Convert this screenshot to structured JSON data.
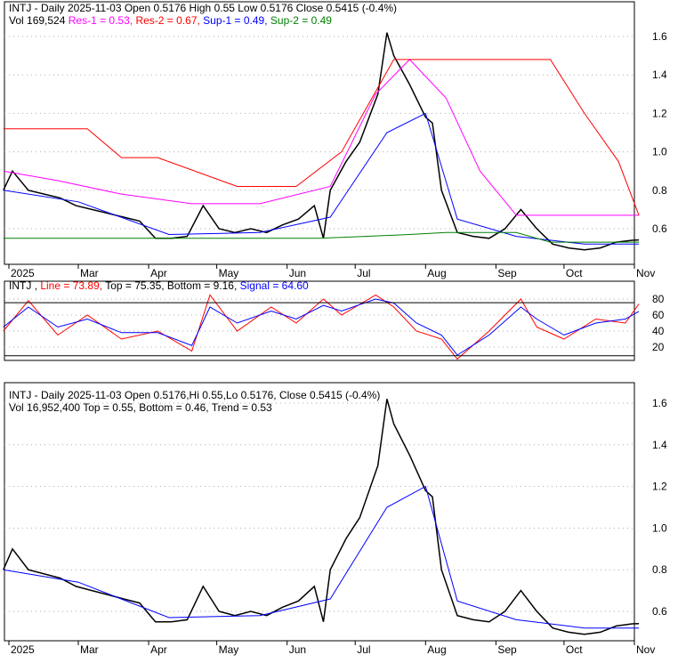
{
  "chart_data": [
    {
      "type": "line",
      "panel": "price-support-resistance",
      "header": {
        "line1": "INTJ - Daily 2025-11-03 Open 0.5176  High 0.55  Low 0.5176  Close 0.5415 (-0.4%)",
        "vol": "Vol 169,524",
        "res1": "Res-1 = 0.53",
        "res2": "Res-2 = 0.67",
        "sup1": "Sup-1 = 0.49",
        "sup2": "Sup-2 = 0.49"
      },
      "yticks": [
        "0.6",
        "0.8",
        "1.0",
        "1.2",
        "1.4",
        "1.6"
      ],
      "ylim": [
        0.5,
        1.7
      ],
      "xticks": [
        "2025",
        "Mar",
        "Apr",
        "May",
        "Jun",
        "Jul",
        "Aug",
        "Sep",
        "Oct",
        "Nov"
      ],
      "series": [
        {
          "key": "close",
          "color": "#000000",
          "x": [
            "2025-01-27",
            "2025-01-31",
            "2025-02-07",
            "2025-02-14",
            "2025-02-21",
            "2025-02-28",
            "2025-03-07",
            "2025-03-14",
            "2025-03-21",
            "2025-03-28",
            "2025-04-04",
            "2025-04-11",
            "2025-04-18",
            "2025-04-25",
            "2025-05-02",
            "2025-05-09",
            "2025-05-16",
            "2025-05-23",
            "2025-05-30",
            "2025-06-06",
            "2025-06-13",
            "2025-06-17",
            "2025-06-20",
            "2025-06-27",
            "2025-07-03",
            "2025-07-11",
            "2025-07-15",
            "2025-07-18",
            "2025-07-25",
            "2025-08-01",
            "2025-08-04",
            "2025-08-08",
            "2025-08-15",
            "2025-08-22",
            "2025-08-29",
            "2025-09-05",
            "2025-09-12",
            "2025-09-19",
            "2025-09-26",
            "2025-10-03",
            "2025-10-10",
            "2025-10-17",
            "2025-10-24",
            "2025-10-31",
            "2025-11-03"
          ],
          "y": [
            0.8,
            0.9,
            0.8,
            0.78,
            0.76,
            0.72,
            0.7,
            0.68,
            0.66,
            0.64,
            0.55,
            0.55,
            0.56,
            0.72,
            0.6,
            0.58,
            0.6,
            0.58,
            0.62,
            0.65,
            0.72,
            0.55,
            0.8,
            0.95,
            1.05,
            1.3,
            1.62,
            1.5,
            1.35,
            1.18,
            1.15,
            0.8,
            0.58,
            0.56,
            0.55,
            0.6,
            0.7,
            0.6,
            0.52,
            0.5,
            0.49,
            0.5,
            0.53,
            0.54,
            0.5415
          ]
        },
        {
          "key": "res-magenta",
          "color": "#ff00ff",
          "x": [
            "2025-01-27",
            "2025-02-20",
            "2025-03-20",
            "2025-04-20",
            "2025-05-20",
            "2025-06-20",
            "2025-07-10",
            "2025-07-25",
            "2025-08-10",
            "2025-08-25",
            "2025-09-10",
            "2025-10-15",
            "2025-11-03"
          ],
          "y": [
            0.9,
            0.85,
            0.78,
            0.73,
            0.73,
            0.82,
            1.3,
            1.48,
            1.28,
            0.9,
            0.67,
            0.67,
            0.67
          ]
        },
        {
          "key": "res-red",
          "color": "#ff0000",
          "x": [
            "2025-01-27",
            "2025-03-05",
            "2025-03-20",
            "2025-04-05",
            "2025-05-10",
            "2025-06-05",
            "2025-06-25",
            "2025-07-18",
            "2025-09-25",
            "2025-10-10",
            "2025-10-25",
            "2025-11-03"
          ],
          "y": [
            1.12,
            1.12,
            0.97,
            0.97,
            0.82,
            0.82,
            1.0,
            1.48,
            1.48,
            1.2,
            0.95,
            0.67
          ]
        },
        {
          "key": "sup-blue",
          "color": "#0000ff",
          "x": [
            "2025-01-27",
            "2025-03-01",
            "2025-04-10",
            "2025-05-20",
            "2025-06-20",
            "2025-07-15",
            "2025-08-01",
            "2025-08-15",
            "2025-09-10",
            "2025-10-10",
            "2025-11-03"
          ],
          "y": [
            0.8,
            0.74,
            0.57,
            0.58,
            0.66,
            1.1,
            1.2,
            0.65,
            0.56,
            0.52,
            0.52
          ]
        },
        {
          "key": "sup-green",
          "color": "#008000",
          "x": [
            "2025-01-27",
            "2025-06-15",
            "2025-07-25",
            "2025-08-10",
            "2025-09-10",
            "2025-09-25",
            "2025-11-03"
          ],
          "y": [
            0.55,
            0.55,
            0.57,
            0.58,
            0.58,
            0.53,
            0.53
          ]
        }
      ]
    },
    {
      "type": "line",
      "panel": "stochastic",
      "header": {
        "prefix": "INTJ",
        "line": "Line = 73.89",
        "top": "Top = 75.35",
        "bottom": "Bottom = 9.16",
        "signal": "Signal = 64.60"
      },
      "yticks": [
        "20",
        "40",
        "60",
        "80"
      ],
      "ylim": [
        0,
        100
      ],
      "series": [
        {
          "key": "line",
          "color": "#ff0000",
          "x": [
            "2025-01-27",
            "2025-02-07",
            "2025-02-20",
            "2025-03-05",
            "2025-03-20",
            "2025-04-05",
            "2025-04-20",
            "2025-04-28",
            "2025-05-10",
            "2025-05-25",
            "2025-06-05",
            "2025-06-17",
            "2025-06-25",
            "2025-07-10",
            "2025-07-18",
            "2025-07-28",
            "2025-08-08",
            "2025-08-15",
            "2025-08-29",
            "2025-09-12",
            "2025-09-19",
            "2025-10-01",
            "2025-10-15",
            "2025-10-28",
            "2025-11-03"
          ],
          "y": [
            40,
            78,
            35,
            60,
            30,
            40,
            15,
            85,
            40,
            70,
            50,
            80,
            60,
            85,
            70,
            40,
            30,
            5,
            40,
            80,
            45,
            30,
            55,
            50,
            73.89
          ]
        },
        {
          "key": "signal",
          "color": "#0000ff",
          "x": [
            "2025-01-27",
            "2025-02-07",
            "2025-02-20",
            "2025-03-05",
            "2025-03-20",
            "2025-04-05",
            "2025-04-20",
            "2025-04-28",
            "2025-05-10",
            "2025-05-25",
            "2025-06-05",
            "2025-06-17",
            "2025-06-25",
            "2025-07-10",
            "2025-07-18",
            "2025-07-28",
            "2025-08-08",
            "2025-08-15",
            "2025-08-29",
            "2025-09-12",
            "2025-09-19",
            "2025-10-01",
            "2025-10-15",
            "2025-10-28",
            "2025-11-03"
          ],
          "y": [
            45,
            70,
            45,
            55,
            38,
            38,
            22,
            70,
            50,
            65,
            55,
            72,
            65,
            80,
            75,
            50,
            35,
            10,
            35,
            70,
            55,
            35,
            50,
            55,
            64.6
          ]
        }
      ]
    },
    {
      "type": "line",
      "panel": "price-trend",
      "header": {
        "line1": "INTJ - Daily 2025-11-03 Open 0.5176,Hi 0.55,Lo 0.5176, Close 0.5415 (-0.4%)",
        "line2": "Vol 16,952,400",
        "top": "Top = 0.55",
        "bottom": "Bottom = 0.46",
        "trend": "Trend = 0.53"
      },
      "yticks": [
        "0.6",
        "0.8",
        "1.0",
        "1.2",
        "1.4",
        "1.6"
      ],
      "ylim": [
        0.45,
        1.7
      ],
      "xticks": [
        "2025",
        "Mar",
        "Apr",
        "May",
        "Jun",
        "Jul",
        "Aug",
        "Sep",
        "Oct",
        "Nov"
      ]
    }
  ]
}
